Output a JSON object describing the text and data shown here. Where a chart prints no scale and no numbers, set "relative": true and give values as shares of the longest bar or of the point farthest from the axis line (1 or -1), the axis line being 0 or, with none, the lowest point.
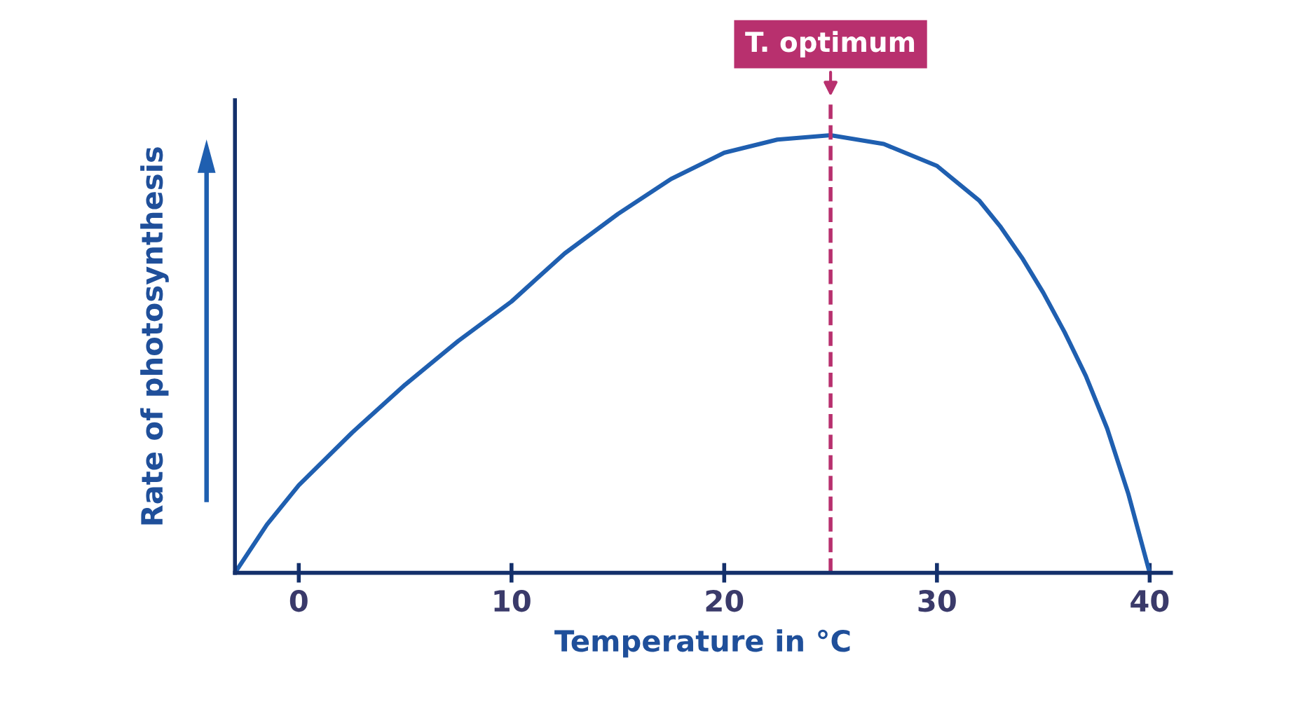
{
  "chart_data": {
    "type": "line",
    "relative": true,
    "xlabel": "Temperature in °C",
    "ylabel": "Rate of photosynthesis",
    "x": [
      -3,
      -1.5,
      0,
      2.5,
      5,
      7.5,
      10,
      12.5,
      15,
      17.5,
      20,
      22.5,
      25,
      27.5,
      30,
      32,
      33,
      34,
      35,
      36,
      37,
      38,
      39,
      40
    ],
    "series": [
      {
        "color": "#1f5fb0",
        "values": [
          0,
          0.11,
          0.2,
          0.32,
          0.43,
          0.53,
          0.62,
          0.73,
          0.82,
          0.9,
          0.96,
          0.99,
          1,
          0.98,
          0.93,
          0.85,
          0.79,
          0.72,
          0.64,
          0.55,
          0.45,
          0.33,
          0.18,
          0
        ]
      }
    ],
    "xlim": [
      -3,
      41
    ],
    "xticks": [
      0,
      10,
      20,
      30,
      40
    ],
    "ref_lines": [
      {
        "axis": "x",
        "value": 25,
        "label": "T. optimum",
        "color": "#b8306e",
        "line_style": "dashed"
      }
    ],
    "grid": false,
    "marker": "none",
    "line_style": "solid"
  }
}
